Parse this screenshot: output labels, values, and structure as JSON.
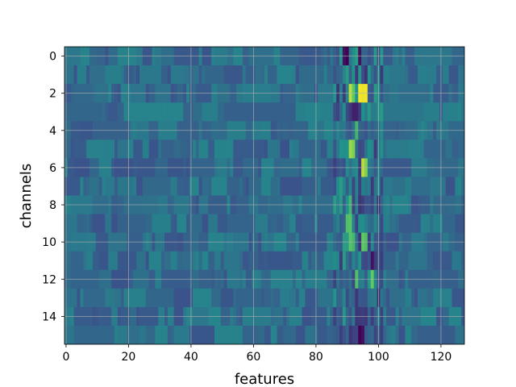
{
  "chart_data": {
    "type": "heatmap",
    "title": "",
    "xlabel": "features",
    "ylabel": "channels",
    "x_ticks": [
      0,
      20,
      40,
      60,
      80,
      100,
      120
    ],
    "y_ticks": [
      0,
      2,
      4,
      6,
      8,
      10,
      12,
      14
    ],
    "x_range": [
      -0.5,
      127.5
    ],
    "y_range": [
      15.5,
      -0.5
    ],
    "n_rows": 16,
    "n_cols": 128,
    "colormap": "viridis",
    "grid": true,
    "value_range": [
      0,
      1
    ],
    "hotspots": [
      {
        "row": 2,
        "col": 94,
        "value": 0.98
      },
      {
        "row": 2,
        "col": 95,
        "value": 0.97
      },
      {
        "row": 2,
        "col": 96,
        "value": 0.98
      },
      {
        "row": 2,
        "col": 91,
        "value": 0.9
      },
      {
        "row": 2,
        "col": 92,
        "value": 0.75
      },
      {
        "row": 2,
        "col": 93,
        "value": 0.5
      },
      {
        "row": 5,
        "col": 91,
        "value": 0.85
      },
      {
        "row": 5,
        "col": 92,
        "value": 0.8
      },
      {
        "row": 6,
        "col": 95,
        "value": 0.9
      },
      {
        "row": 6,
        "col": 96,
        "value": 0.8
      },
      {
        "row": 4,
        "col": 93,
        "value": 0.65
      },
      {
        "row": 9,
        "col": 90,
        "value": 0.7
      },
      {
        "row": 9,
        "col": 91,
        "value": 0.72
      },
      {
        "row": 10,
        "col": 91,
        "value": 0.72
      },
      {
        "row": 10,
        "col": 92,
        "value": 0.66
      },
      {
        "row": 10,
        "col": 95,
        "value": 0.75
      },
      {
        "row": 10,
        "col": 96,
        "value": 0.7
      },
      {
        "row": 12,
        "col": 93,
        "value": 0.7
      },
      {
        "row": 12,
        "col": 98,
        "value": 0.75
      },
      {
        "row": 8,
        "col": 91,
        "value": 0.65
      },
      {
        "row": 0,
        "col": 89,
        "value": 0.05
      },
      {
        "row": 0,
        "col": 90,
        "value": 0.0
      },
      {
        "row": 0,
        "col": 94,
        "value": 0.05
      },
      {
        "row": 3,
        "col": 92,
        "value": 0.1
      },
      {
        "row": 3,
        "col": 93,
        "value": 0.1
      },
      {
        "row": 11,
        "col": 98,
        "value": 0.05
      },
      {
        "row": 15,
        "col": 94,
        "value": 0.0
      },
      {
        "row": 15,
        "col": 95,
        "value": 0.05
      }
    ]
  }
}
